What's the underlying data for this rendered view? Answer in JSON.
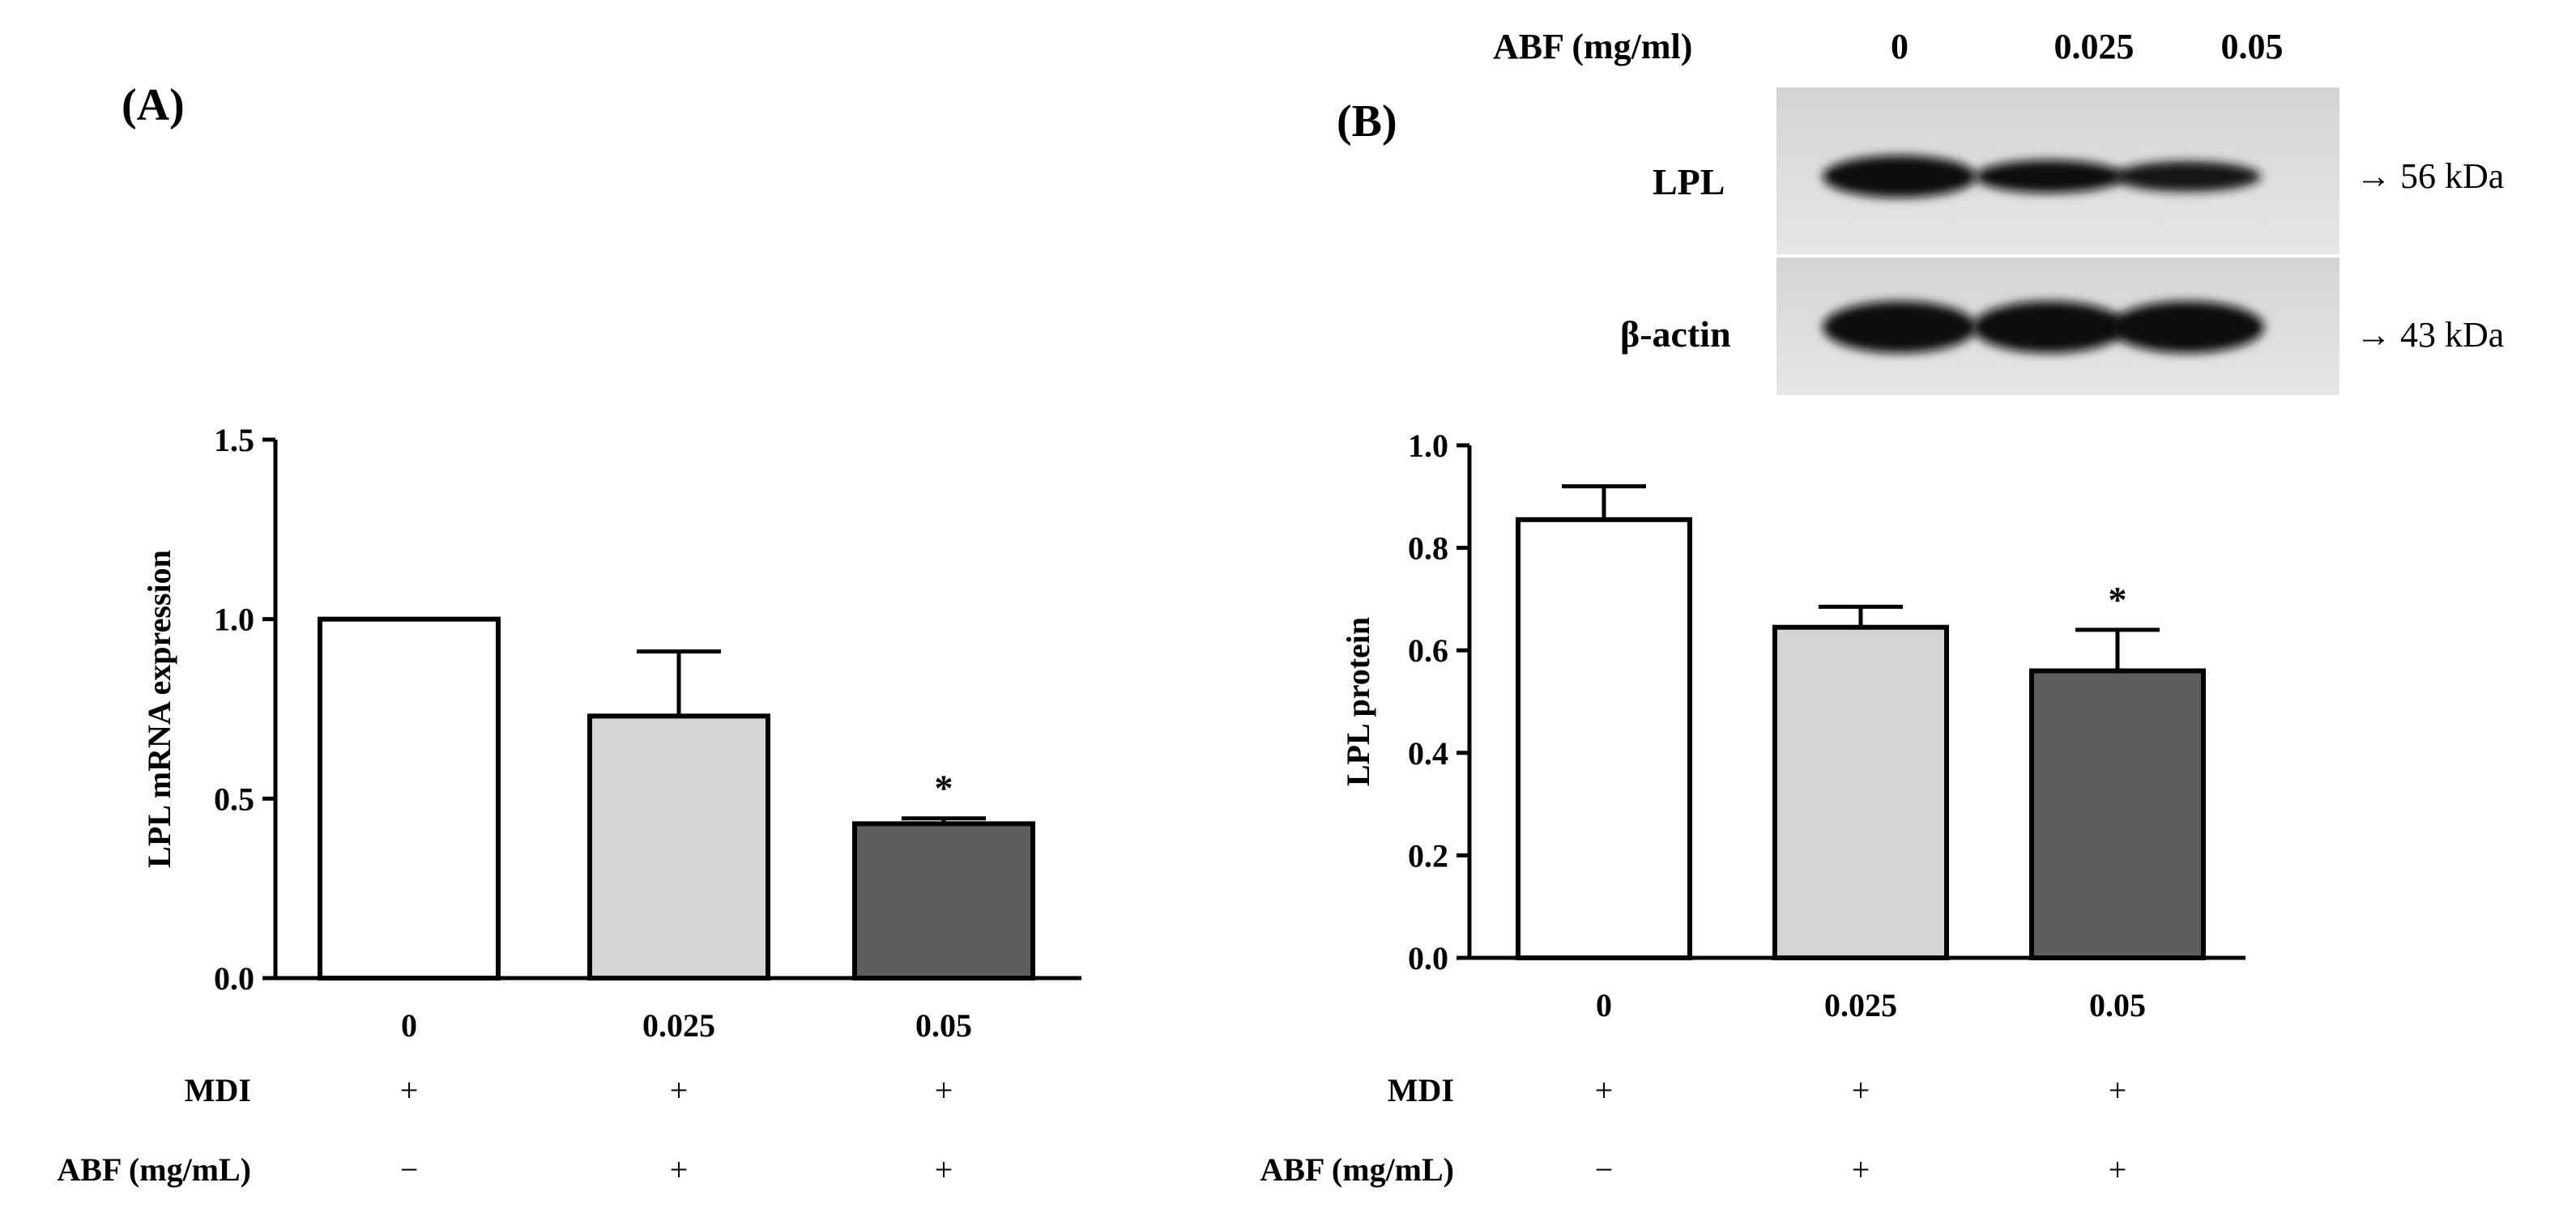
{
  "panel_a": {
    "label": "(A)",
    "ylabel": "LPL mRNA expression",
    "conditions": [
      {
        "name": "MDI",
        "marks": [
          "+",
          "+",
          "+"
        ]
      },
      {
        "name": "ABF (mg/mL)",
        "marks": [
          "−",
          "+",
          "+"
        ]
      }
    ]
  },
  "panel_b": {
    "label": "(B)",
    "ylabel": "LPL protein",
    "conditions": [
      {
        "name": "MDI",
        "marks": [
          "+",
          "+",
          "+"
        ]
      },
      {
        "name": "ABF (mg/mL)",
        "marks": [
          "−",
          "+",
          "+"
        ]
      }
    ],
    "blot": {
      "header_label": "ABF (mg/ml)",
      "lanes": [
        "0",
        "0.025",
        "0.05"
      ],
      "rows": [
        {
          "name": "LPL",
          "size": "→ 56 kDa",
          "intensity": [
            1.0,
            0.78,
            0.72
          ]
        },
        {
          "name": "β-actin",
          "size": "→  43 kDa",
          "intensity": [
            1.0,
            1.0,
            1.0
          ]
        }
      ]
    }
  },
  "colors": {
    "bar_fills": [
      "#ffffff",
      "#d4d4d4",
      "#5e5e5e"
    ],
    "stroke": "#000000"
  },
  "chart_data": [
    {
      "type": "bar",
      "categories": [
        "0",
        "0.025",
        "0.05"
      ],
      "values": [
        1.0,
        0.73,
        0.43
      ],
      "errors": [
        0.0,
        0.18,
        0.015
      ],
      "significance": [
        "",
        "",
        "*"
      ],
      "ylabel": "LPL mRNA expression",
      "ylim": [
        0,
        1.5
      ],
      "yticks": [
        "0.0",
        "0.5",
        "1.0",
        "1.5"
      ],
      "grid": false
    },
    {
      "type": "bar",
      "categories": [
        "0",
        "0.025",
        "0.05"
      ],
      "values": [
        0.855,
        0.645,
        0.56
      ],
      "errors": [
        0.065,
        0.04,
        0.08
      ],
      "significance": [
        "",
        "",
        "*"
      ],
      "ylabel": "LPL protein",
      "ylim": [
        0,
        1.0
      ],
      "yticks": [
        "0.0",
        "0.2",
        "0.4",
        "0.6",
        "0.8",
        "1.0"
      ],
      "grid": false
    }
  ]
}
